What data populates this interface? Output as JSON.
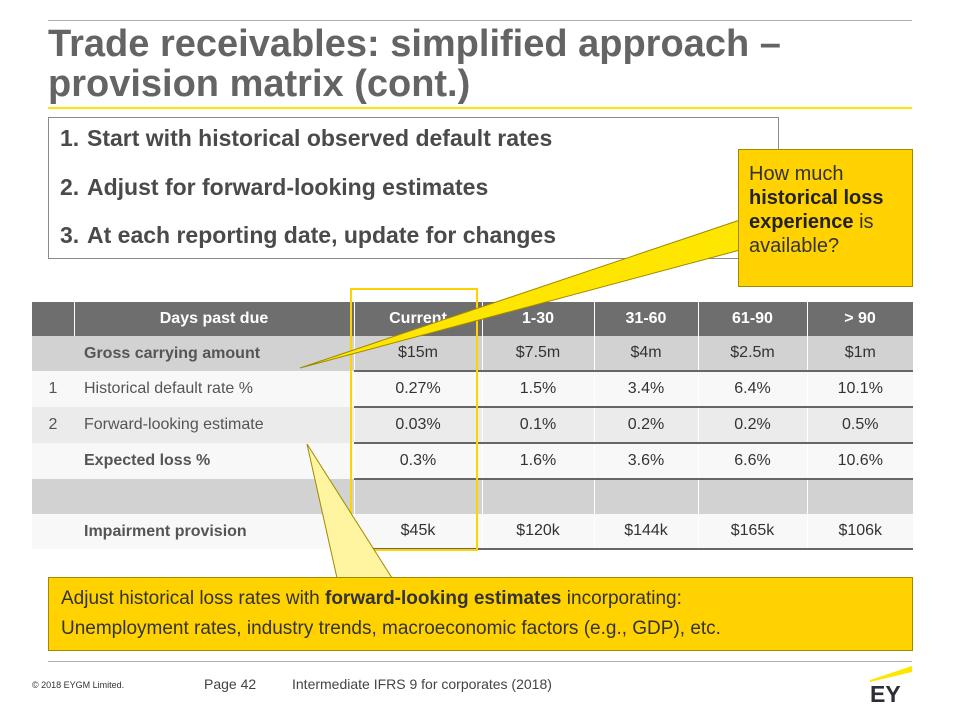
{
  "title": {
    "line1": "Trade receivables: simplified approach –",
    "line2": "provision matrix (cont.)"
  },
  "steps": [
    {
      "num": "1.",
      "text": "Start with historical observed default rates"
    },
    {
      "num": "2.",
      "text": "Adjust for forward-looking estimates"
    },
    {
      "num": "3.",
      "text": "At each reporting date, update for changes"
    }
  ],
  "callout": {
    "part1": "How much ",
    "bold": "historical loss experience",
    "part2": " is available?"
  },
  "table": {
    "headers": [
      "",
      "Days past due",
      "Current",
      "1-30",
      "31-60",
      "61-90",
      "> 90"
    ],
    "rows": [
      {
        "idx": "",
        "label": "Gross carrying amount",
        "values": [
          "$15m",
          "$7.5m",
          "$4m",
          "$2.5m",
          "$1m"
        ]
      },
      {
        "idx": "1",
        "label": "Historical default rate %",
        "values": [
          "0.27%",
          "1.5%",
          "3.4%",
          "6.4%",
          "10.1%"
        ]
      },
      {
        "idx": "2",
        "label": "Forward-looking estimate",
        "values": [
          "0.03%",
          "0.1%",
          "0.2%",
          "0.2%",
          "0.5%"
        ]
      },
      {
        "idx": "",
        "label": "Expected loss %",
        "values": [
          "0.3%",
          "1.6%",
          "3.6%",
          "6.6%",
          "10.6%"
        ]
      },
      {
        "idx": "",
        "label": "",
        "values": [
          "",
          "",
          "",
          "",
          ""
        ]
      },
      {
        "idx": "",
        "label": "Impairment provision",
        "values": [
          "$45k",
          "$120k",
          "$144k",
          "$165k",
          "$106k"
        ]
      }
    ]
  },
  "bottom": {
    "line1_part1": "Adjust historical loss rates with ",
    "line1_bold": "forward-looking estimates",
    "line1_part2": " incorporating:",
    "line2": "Unemployment rates, industry trends, macroeconomic factors (e.g., GDP), etc."
  },
  "footer": {
    "copyright": "© 2018 EYGM Limited.",
    "page": "Page 42",
    "course": "Intermediate IFRS 9 for corporates (2018)",
    "logo_text": "EY"
  },
  "colors": {
    "accent_yellow": "#ffd200",
    "brand_yellow": "#ffe600",
    "header_gray": "#6e6e6e"
  }
}
